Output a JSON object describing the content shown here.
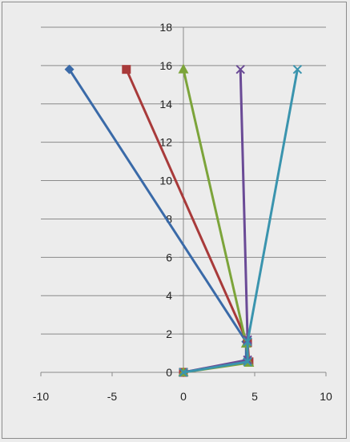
{
  "chart_data": {
    "type": "scatter",
    "title": "",
    "xlabel": "",
    "ylabel": "",
    "xlim": [
      -10,
      10
    ],
    "ylim": [
      0,
      18
    ],
    "x_ticks": [
      -10,
      -5,
      0,
      5,
      10
    ],
    "y_ticks": [
      0,
      2,
      4,
      6,
      8,
      10,
      12,
      14,
      16,
      18
    ],
    "grid": "horizontal",
    "legend": "none",
    "series": [
      {
        "color": "#3a6aa8",
        "marker": "diamond",
        "points": [
          [
            0,
            0
          ],
          [
            4.4,
            0.6
          ],
          [
            4.4,
            1.6
          ],
          [
            -8,
            15.8
          ]
        ]
      },
      {
        "color": "#a83a3a",
        "marker": "square",
        "points": [
          [
            0,
            0
          ],
          [
            4.6,
            0.55
          ],
          [
            4.5,
            1.55
          ],
          [
            -4,
            15.8
          ]
        ]
      },
      {
        "color": "#7ca43a",
        "marker": "triangle",
        "points": [
          [
            0,
            0
          ],
          [
            4.6,
            0.5
          ],
          [
            4.4,
            1.5
          ],
          [
            0,
            15.8
          ]
        ]
      },
      {
        "color": "#6a4a96",
        "marker": "x",
        "points": [
          [
            0,
            0
          ],
          [
            4.5,
            0.65
          ],
          [
            4.5,
            1.7
          ],
          [
            4,
            15.8
          ]
        ]
      },
      {
        "color": "#3a94ae",
        "marker": "x",
        "points": [
          [
            0,
            0
          ],
          [
            4.5,
            0.55
          ],
          [
            4.5,
            1.6
          ],
          [
            8,
            15.8
          ]
        ]
      }
    ]
  }
}
